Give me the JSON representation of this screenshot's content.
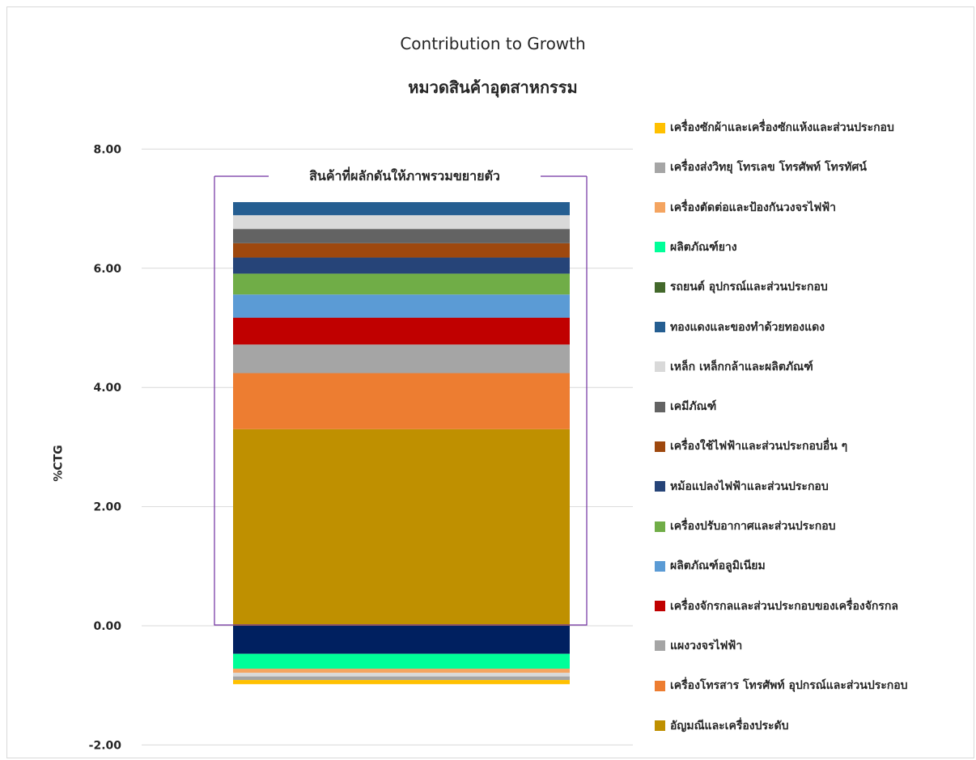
{
  "chart_data": {
    "type": "bar",
    "stacked": true,
    "title": "Contribution to Growth",
    "subtitle": "หมวดสินค้าอุตสาหกรรม",
    "ylabel": "%CTG",
    "ylim": [
      -2,
      8.3
    ],
    "yticks": [
      "-2.00",
      "0.00",
      "2.00",
      "4.00",
      "6.00",
      "8.00"
    ],
    "grid": true,
    "legend_position": "right",
    "annotation": "สินค้าที่ผลักดันให้ภาพรวมขยายตัว",
    "positive_series": [
      {
        "name": "อัญมณีและเครื่องประดับ",
        "value": 3.3,
        "color": "#BF9000"
      },
      {
        "name": "เครื่องโทรสาร โทรศัพท์ อุปกรณ์และส่วนประกอบ",
        "value": 0.94,
        "color": "#ED7D31"
      },
      {
        "name": "แผงวงจรไฟฟ้า",
        "value": 0.48,
        "color": "#A5A5A5"
      },
      {
        "name": "เครื่องจักรกลและส่วนประกอบของเครื่องจักรกล",
        "value": 0.45,
        "color": "#C00000"
      },
      {
        "name": "ผลิตภัณฑ์อลูมิเนียม",
        "value": 0.39,
        "color": "#5B9BD5"
      },
      {
        "name": "เครื่องปรับอากาศและส่วนประกอบ",
        "value": 0.35,
        "color": "#70AD47"
      },
      {
        "name": "หม้อแปลงไฟฟ้าและส่วนประกอบ",
        "value": 0.27,
        "color": "#264478"
      },
      {
        "name": "เครื่องใช้ไฟฟ้าและส่วนประกอบอื่น ๆ",
        "value": 0.24,
        "color": "#9E480E"
      },
      {
        "name": "เคมีภัณฑ์",
        "value": 0.24,
        "color": "#636363"
      },
      {
        "name": "เหล็ก เหล็กกล้าและผลิตภัณฑ์",
        "value": 0.23,
        "color": "#D9D9D9"
      },
      {
        "name": "ทองแดงและของทำด้วยทองแดง",
        "value": 0.22,
        "color": "#255E91"
      }
    ],
    "negative_series": [
      {
        "name": "",
        "value": -0.47,
        "color": "#002060"
      },
      {
        "name": "",
        "value": -0.25,
        "color": "#00FF99"
      },
      {
        "name": "",
        "value": -0.07,
        "color": "#F4A460"
      },
      {
        "name": "",
        "value": -0.06,
        "color": "#D9D9D9"
      },
      {
        "name": "",
        "value": -0.06,
        "color": "#A5A5A5"
      },
      {
        "name": "",
        "value": -0.07,
        "color": "#FFC000"
      }
    ],
    "legend": [
      {
        "name": "เครื่องซักผ้าและเครื่องซักแห้งและส่วนประกอบ",
        "color": "#FFC000"
      },
      {
        "name": "เครื่องส่งวิทยุ โทรเลข โทรศัพท์ โทรทัศน์",
        "color": "#A5A5A5"
      },
      {
        "name": "เครื่องตัดต่อและป้องกันวงจรไฟฟ้า",
        "color": "#F4A460"
      },
      {
        "name": "ผลิตภัณฑ์ยาง",
        "color": "#00FF99"
      },
      {
        "name": "รถยนต์ อุปกรณ์และส่วนประกอบ",
        "color": "#43682B"
      },
      {
        "name": "ทองแดงและของทำด้วยทองแดง",
        "color": "#255E91"
      },
      {
        "name": "เหล็ก เหล็กกล้าและผลิตภัณฑ์",
        "color": "#D9D9D9"
      },
      {
        "name": "เคมีภัณฑ์",
        "color": "#636363"
      },
      {
        "name": "เครื่องใช้ไฟฟ้าและส่วนประกอบอื่น ๆ",
        "color": "#9E480E"
      },
      {
        "name": "หม้อแปลงไฟฟ้าและส่วนประกอบ",
        "color": "#264478"
      },
      {
        "name": "เครื่องปรับอากาศและส่วนประกอบ",
        "color": "#70AD47"
      },
      {
        "name": "ผลิตภัณฑ์อลูมิเนียม",
        "color": "#5B9BD5"
      },
      {
        "name": "เครื่องจักรกลและส่วนประกอบของเครื่องจักรกล",
        "color": "#C00000"
      },
      {
        "name": "แผงวงจรไฟฟ้า",
        "color": "#A5A5A5"
      },
      {
        "name": "เครื่องโทรสาร โทรศัพท์ อุปกรณ์และส่วนประกอบ",
        "color": "#ED7D31"
      },
      {
        "name": "อัญมณีและเครื่องประดับ",
        "color": "#BF9000"
      }
    ],
    "annotation_color": "#7030A0"
  }
}
